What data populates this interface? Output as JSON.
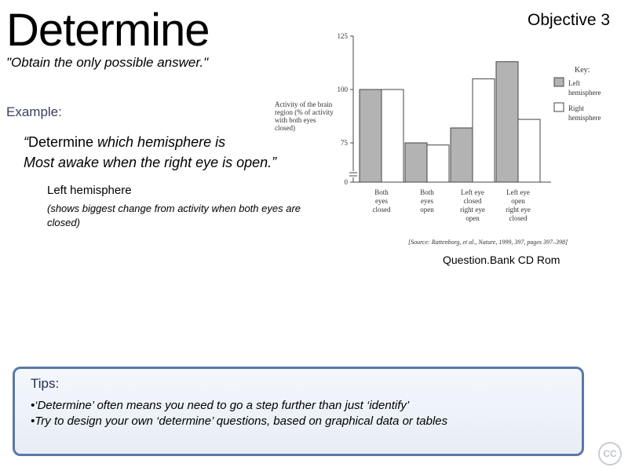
{
  "slide": {
    "title": "Determine",
    "objective": "Objective 3",
    "subtitle": "\"Obtain the only possible answer.\"",
    "example_label": "Example:",
    "question": {
      "open_quote": "“",
      "keyword": "Determine",
      "line1_rest": " which hemisphere is",
      "line2": "Most awake when the right eye is open.”"
    },
    "answer": "Left hemisphere",
    "answer_note": "(shows biggest change from activity when both eyes are closed)",
    "source_credit": "Question.Bank CD Rom"
  },
  "chart_data": {
    "type": "bar",
    "ylabel_lines": [
      "Activity of the brain",
      "region (% of activity",
      "with both eyes",
      "closed)"
    ],
    "y_ticks": [
      0,
      75,
      100,
      125
    ],
    "ylim": [
      0,
      125
    ],
    "categories": [
      [
        "Both",
        "eyes",
        "closed"
      ],
      [
        "Both",
        "eyes",
        "open"
      ],
      [
        "Left eye",
        "closed",
        "right eye",
        "open"
      ],
      [
        "Left eye",
        "open",
        "right eye",
        "closed"
      ]
    ],
    "series": [
      {
        "name": "Left hemisphere",
        "color": "#b3b3b3",
        "values": [
          100,
          75,
          82,
          113
        ]
      },
      {
        "name": "Right hemisphere",
        "color": "#ffffff",
        "values": [
          100,
          74,
          105,
          86
        ]
      }
    ],
    "legend": {
      "title": "Key:",
      "left_lines": [
        "Left",
        "hemisphere"
      ],
      "right_lines": [
        "Right",
        "hemisphere"
      ],
      "position": "top-right"
    },
    "axis_break": true,
    "source": "[Source: Rattenborg, et al., Nature, 1999, 397, pages 397–398]"
  },
  "tips": {
    "title": "Tips:",
    "items": [
      "•‘Determine’ often means you need to go a step further than just ‘identify’",
      "•Try to design your own ‘determine’ questions, based on graphical data or tables"
    ]
  },
  "logo_text": "CC"
}
